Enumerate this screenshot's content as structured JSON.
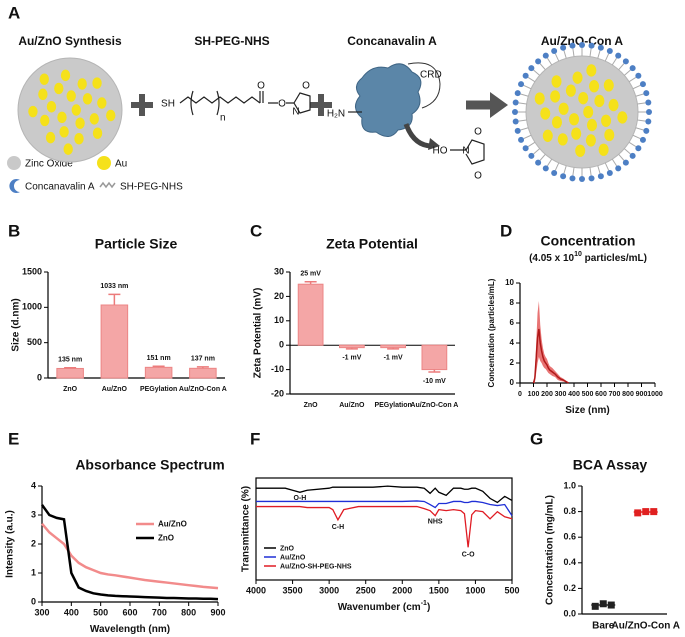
{
  "scheme": {
    "panel": "A",
    "titles": [
      "Au/ZnO Synthesis",
      "SH-PEG-NHS",
      "Concanavalin A",
      "Au/ZnO-Con A"
    ],
    "chem": {
      "sh": "SH",
      "n": "n",
      "o1": "O",
      "o2": "O",
      "n1": "N",
      "o3": "O",
      "crd": "CRD",
      "h2n": "H₂N",
      "ho": "HO",
      "n2": "N",
      "o4": "O",
      "o5": "O"
    },
    "legend": [
      "Zinc Oxide",
      "Au",
      "Concanavalin A",
      "SH-PEG-NHS"
    ]
  },
  "chart_data": [
    {
      "type": "bar",
      "panel": "B",
      "title": "Particle Size",
      "ylabel": "Size (d.nm)",
      "categories": [
        "ZnO",
        "Au/ZnO",
        "PEGylation",
        "Au/ZnO-Con A"
      ],
      "values": [
        135,
        1033,
        151,
        137
      ],
      "errors": [
        10,
        150,
        15,
        20
      ],
      "value_labels": [
        "135 nm",
        "1033 nm",
        "151 nm",
        "137 nm"
      ],
      "color": "#f4a6a6",
      "ylim": [
        0,
        1500
      ],
      "yticks": [
        0,
        500,
        1000,
        1500
      ]
    },
    {
      "type": "bar",
      "panel": "C",
      "title": "Zeta Potential",
      "ylabel": "Zeta Potential (mV)",
      "categories": [
        "ZnO",
        "Au/ZnO",
        "PEGylation",
        "Au/ZnO-Con A"
      ],
      "values": [
        25,
        -1,
        -1,
        -10
      ],
      "errors": [
        1,
        0.5,
        0.5,
        1
      ],
      "value_labels": [
        "25 mV",
        "-1 mV",
        "-1 mV",
        "-10 mV"
      ],
      "color": "#f4a6a6",
      "ylim": [
        -20,
        30
      ],
      "yticks": [
        -20,
        -10,
        0,
        10,
        20,
        30
      ]
    },
    {
      "type": "area",
      "panel": "D",
      "title": "Concentration",
      "subtitle": "(4.05 x 10",
      "subtitle_sup": "10",
      "subtitle_end": " particles/mL)",
      "xlabel": "Size (nm)",
      "ylabel": "Concentration (particles/mL)",
      "x": [
        100,
        110,
        120,
        130,
        140,
        150,
        160,
        170,
        180,
        190,
        200,
        210,
        220,
        240,
        260,
        280,
        300,
        320,
        340,
        360
      ],
      "values": [
        0,
        0.5,
        2.5,
        4.5,
        5.4,
        4.0,
        3.2,
        2.6,
        2.2,
        2.0,
        1.8,
        1.5,
        1.3,
        1.1,
        0.9,
        0.6,
        0.4,
        0.3,
        0.15,
        0
      ],
      "errors": [
        0,
        0.5,
        1.5,
        2.5,
        2.8,
        1.8,
        1.2,
        0.9,
        0.7,
        0.6,
        0.6,
        0.5,
        0.4,
        0.4,
        0.3,
        0.3,
        0.2,
        0.15,
        0.1,
        0
      ],
      "color": "#b01818",
      "xlim": [
        0,
        1000
      ],
      "xticks": [
        0,
        100,
        200,
        300,
        400,
        500,
        600,
        700,
        800,
        900,
        1000
      ],
      "ylim": [
        0,
        10
      ],
      "yticks": [
        0,
        2,
        4,
        6,
        8,
        10
      ]
    },
    {
      "type": "line",
      "panel": "E",
      "title": "Absorbance Spectrum",
      "xlabel": "Wavelength (nm)",
      "ylabel": "Intensity (a.u.)",
      "x": [
        300,
        325,
        350,
        375,
        400,
        425,
        450,
        475,
        500,
        525,
        550,
        575,
        600,
        625,
        650,
        675,
        700,
        725,
        750,
        775,
        800,
        825,
        850,
        875,
        900
      ],
      "series": [
        {
          "name": "Au/ZnO",
          "color": "#f28b8b",
          "values": [
            2.7,
            2.4,
            2.2,
            2.0,
            1.6,
            1.35,
            1.2,
            1.1,
            1.0,
            0.95,
            0.92,
            0.88,
            0.84,
            0.8,
            0.76,
            0.73,
            0.7,
            0.67,
            0.64,
            0.61,
            0.58,
            0.55,
            0.52,
            0.5,
            0.48
          ]
        },
        {
          "name": "ZnO",
          "color": "#000000",
          "values": [
            3.35,
            3.0,
            2.9,
            2.85,
            1.0,
            0.5,
            0.38,
            0.3,
            0.26,
            0.23,
            0.21,
            0.2,
            0.19,
            0.18,
            0.17,
            0.16,
            0.15,
            0.14,
            0.14,
            0.13,
            0.12,
            0.12,
            0.11,
            0.11,
            0.1
          ]
        }
      ],
      "xlim": [
        300,
        900
      ],
      "xticks": [
        300,
        400,
        500,
        600,
        700,
        800,
        900
      ],
      "ylim": [
        0,
        4
      ],
      "yticks": [
        0,
        1,
        2,
        3,
        4
      ],
      "legend": "upper right"
    },
    {
      "type": "line",
      "panel": "F",
      "xlabel": "Wavenumber (cm",
      "xlabel_sup": "-1",
      "xlabel_end": ")",
      "ylabel": "Transmittance (%)",
      "x": [
        4000,
        3800,
        3600,
        3500,
        3400,
        3300,
        3000,
        2950,
        2880,
        2800,
        2600,
        2400,
        2200,
        2000,
        1800,
        1700,
        1620,
        1550,
        1500,
        1400,
        1300,
        1200,
        1150,
        1100,
        1050,
        1000,
        900,
        800,
        700,
        600,
        500
      ],
      "series": [
        {
          "name": "ZnO",
          "color": "#000000",
          "values": [
            9.0,
            9.0,
            9.0,
            8.8,
            8.6,
            8.8,
            9.0,
            9.1,
            9.1,
            9.1,
            9.1,
            9.1,
            9.2,
            9.1,
            9.1,
            9.0,
            8.5,
            9.0,
            8.6,
            8.3,
            9.0,
            9.0,
            8.9,
            8.9,
            9.0,
            9.0,
            8.7,
            8.0,
            7.6,
            8.2,
            7.8
          ]
        },
        {
          "name": "Au/ZnO",
          "color": "#1f2fd6",
          "values": [
            7.7,
            7.7,
            7.7,
            7.7,
            7.7,
            7.7,
            7.7,
            7.7,
            7.7,
            7.7,
            7.7,
            7.7,
            7.7,
            7.7,
            7.75,
            7.7,
            7.4,
            7.1,
            7.5,
            7.5,
            7.7,
            7.7,
            7.6,
            7.6,
            7.7,
            7.7,
            7.6,
            7.4,
            7.3,
            7.4,
            6.3
          ]
        },
        {
          "name": "Au/ZnO-SH-PEG-NHS",
          "color": "#e01c24",
          "values": [
            7.2,
            7.2,
            7.2,
            7.2,
            7.2,
            7.1,
            7.1,
            6.9,
            5.9,
            6.9,
            7.2,
            7.2,
            7.2,
            7.2,
            7.2,
            7.0,
            6.8,
            6.3,
            6.9,
            6.8,
            6.9,
            6.8,
            6.5,
            3.2,
            6.4,
            6.8,
            6.7,
            6.0,
            6.7,
            6.2,
            6.0
          ]
        }
      ],
      "annotations": [
        "O-H",
        "C-H",
        "NHS",
        "C-O"
      ],
      "xlim": [
        4000,
        500
      ],
      "xticks": [
        4000,
        3500,
        3000,
        2500,
        2000,
        1500,
        1000,
        500
      ],
      "ylim": [
        0,
        10
      ],
      "legend": "lower left"
    },
    {
      "type": "dot",
      "panel": "G",
      "title": "BCA Assay",
      "ylabel": "Concentration (mg/mL)",
      "categories": [
        "Bare",
        "Au/ZnO-Con A"
      ],
      "values": [
        [
          0.06,
          0.08,
          0.07
        ],
        [
          0.79,
          0.8,
          0.8
        ]
      ],
      "colors": [
        "#222222",
        "#e02020"
      ],
      "ylim": [
        0,
        1
      ],
      "yticks": [
        {
          "value": 0,
          "label": "0.0"
        },
        0.2,
        0.4,
        0.6,
        0.8,
        {
          "value": 1,
          "label": "1.0"
        }
      ]
    }
  ]
}
